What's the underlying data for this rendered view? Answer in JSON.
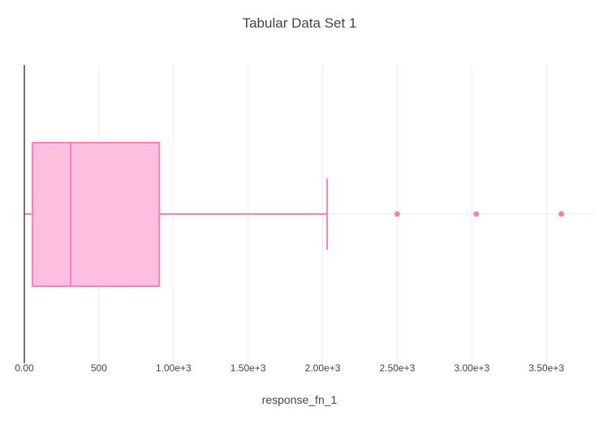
{
  "chart_data": {
    "type": "box",
    "orientation": "horizontal",
    "title": "Tabular Data Set 1",
    "xlabel": "response_fn_1",
    "ylabel": "",
    "xlim": [
      0,
      3820
    ],
    "x_ticks": [
      {
        "value": 0,
        "label": "0.00"
      },
      {
        "value": 500,
        "label": "500"
      },
      {
        "value": 1000,
        "label": "1.00e+3"
      },
      {
        "value": 1500,
        "label": "1.50e+3"
      },
      {
        "value": 2000,
        "label": "2.00e+3"
      },
      {
        "value": 2500,
        "label": "2.50e+3"
      },
      {
        "value": 3000,
        "label": "3.00e+3"
      },
      {
        "value": 3500,
        "label": "3.50e+3"
      }
    ],
    "box": {
      "min": 5,
      "q1": 55,
      "median": 310,
      "q3": 905,
      "upper_fence": 2030,
      "outliers": [
        2500,
        3030,
        3600
      ]
    },
    "grid": true,
    "colors": {
      "box_fill": "#ffbfe0",
      "box_line": "#f77fc0",
      "grid": "#eeeeee",
      "zero_line": "#444444"
    }
  }
}
